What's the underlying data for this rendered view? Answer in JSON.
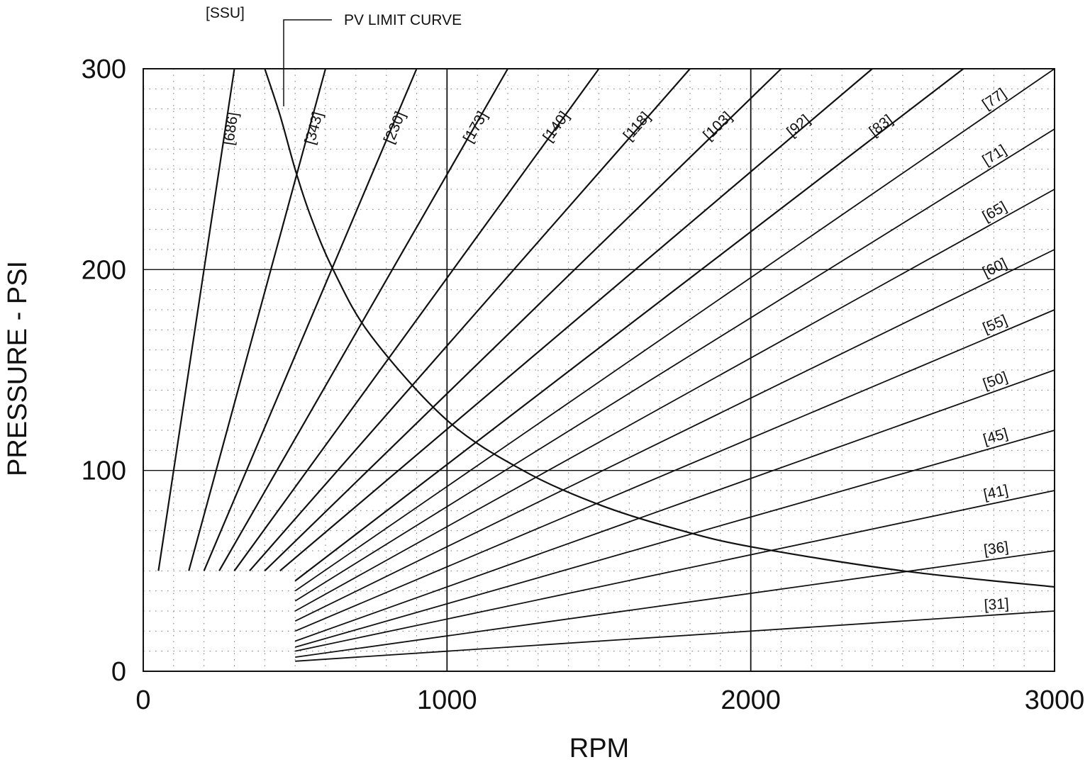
{
  "chart_data": {
    "type": "line",
    "xlabel": "RPM",
    "ylabel": "PRESSURE - PSI",
    "xlim": [
      0,
      3000
    ],
    "ylim": [
      0,
      300
    ],
    "x_ticks": [
      "0",
      "1000",
      "2000",
      "3000"
    ],
    "y_ticks": [
      "0",
      "100",
      "200",
      "300"
    ],
    "grid": true,
    "annotations": {
      "ssu": "[SSU]",
      "pv_limit": "PV LIMIT CURVE"
    },
    "series": [
      {
        "name": "[686]",
        "x_start": 50,
        "y_start": 50,
        "x_end": 300,
        "y_end": 300
      },
      {
        "name": "[343]",
        "x_start": 150,
        "y_start": 50,
        "x_end": 600,
        "y_end": 300
      },
      {
        "name": "[230]",
        "x_start": 200,
        "y_start": 50,
        "x_end": 900,
        "y_end": 300
      },
      {
        "name": "[173]",
        "x_start": 250,
        "y_start": 50,
        "x_end": 1200,
        "y_end": 300
      },
      {
        "name": "[140]",
        "x_start": 300,
        "y_start": 50,
        "x_end": 1500,
        "y_end": 300
      },
      {
        "name": "[118]",
        "x_start": 350,
        "y_start": 50,
        "x_end": 1800,
        "y_end": 300
      },
      {
        "name": "[103]",
        "x_start": 400,
        "y_start": 50,
        "x_end": 2100,
        "y_end": 300
      },
      {
        "name": "[92]",
        "x_start": 450,
        "y_start": 50,
        "x_end": 2400,
        "y_end": 300
      },
      {
        "name": "[83]",
        "x_start": 500,
        "y_start": 45,
        "x_end": 2700,
        "y_end": 300
      },
      {
        "name": "[77]",
        "x_start": 500,
        "y_start": 40,
        "x_end": 3000,
        "y_end": 300
      },
      {
        "name": "[71]",
        "x_start": 500,
        "y_start": 35,
        "x_end": 3000,
        "y_end": 270
      },
      {
        "name": "[65]",
        "x_start": 500,
        "y_start": 30,
        "x_end": 3000,
        "y_end": 240
      },
      {
        "name": "[60]",
        "x_start": 500,
        "y_start": 25,
        "x_end": 3000,
        "y_end": 210
      },
      {
        "name": "[55]",
        "x_start": 500,
        "y_start": 20,
        "x_end": 3000,
        "y_end": 180
      },
      {
        "name": "[50]",
        "x_start": 500,
        "y_start": 15,
        "x_end": 3000,
        "y_end": 150
      },
      {
        "name": "[45]",
        "x_start": 500,
        "y_start": 12,
        "x_end": 3000,
        "y_end": 120
      },
      {
        "name": "[41]",
        "x_start": 500,
        "y_start": 10,
        "x_end": 3000,
        "y_end": 90
      },
      {
        "name": "[36]",
        "x_start": 500,
        "y_start": 7,
        "x_end": 3000,
        "y_end": 60
      },
      {
        "name": "[31]",
        "x_start": 500,
        "y_start": 5,
        "x_end": 3000,
        "y_end": 30
      }
    ],
    "pv_limit_curve": {
      "name": "PV LIMIT CURVE",
      "x": [
        400,
        450,
        500,
        550,
        625,
        750,
        1000,
        1250,
        1500,
        1750,
        2000,
        2500,
        3000
      ],
      "y": [
        300,
        277,
        250,
        227,
        200,
        167,
        125,
        100,
        83,
        71,
        62,
        50,
        42
      ]
    }
  }
}
